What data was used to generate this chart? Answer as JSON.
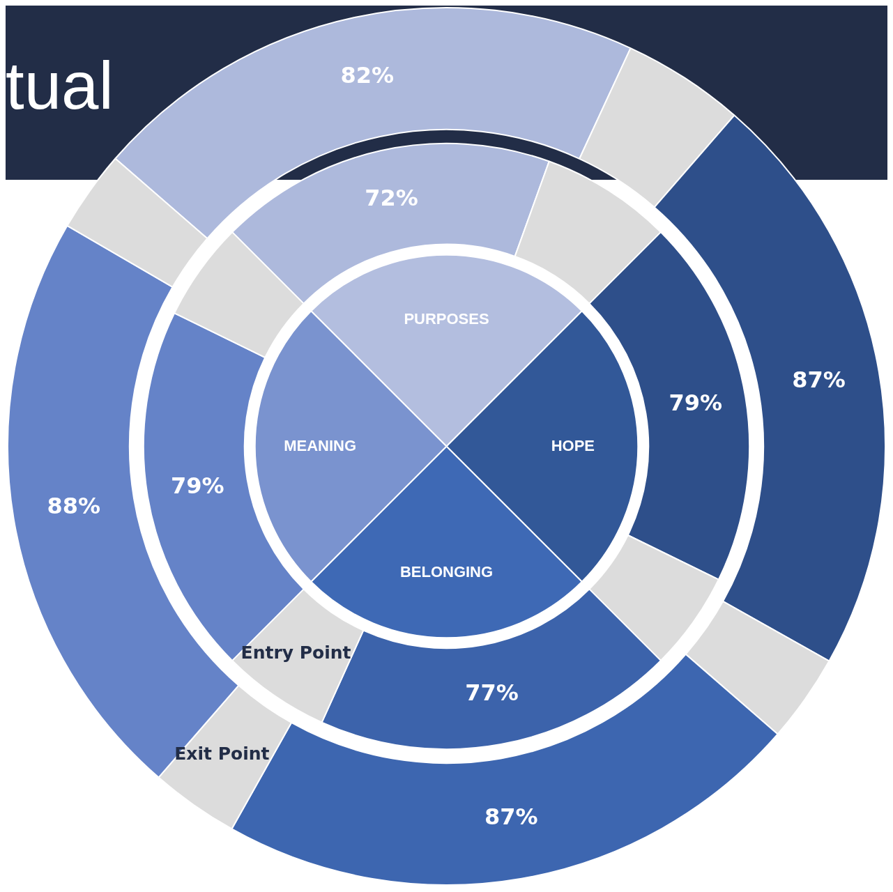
{
  "chart_data": {
    "type": "other",
    "title": "tual",
    "categories": [
      "PURPOSES",
      "HOPE",
      "BELONGING",
      "MEANING"
    ],
    "colors": [
      "#b3bedf",
      "#325898",
      "#3e69b5",
      "#7a93cf"
    ],
    "series": [
      {
        "name": "Entry Point",
        "values": [
          72,
          79,
          77,
          79
        ],
        "value_labels": [
          "72%",
          "79%",
          "77%",
          "79%"
        ],
        "colors": [
          "#adb9dc",
          "#2e4f8a",
          "#3c63ab",
          "#6583c8"
        ]
      },
      {
        "name": "Exit Point",
        "values": [
          82,
          87,
          87,
          88
        ],
        "value_labels": [
          "82%",
          "87%",
          "87%",
          "88%"
        ],
        "colors": [
          "#adb9dc",
          "#2e4f8a",
          "#3d66b0",
          "#6583c8"
        ]
      }
    ]
  }
}
